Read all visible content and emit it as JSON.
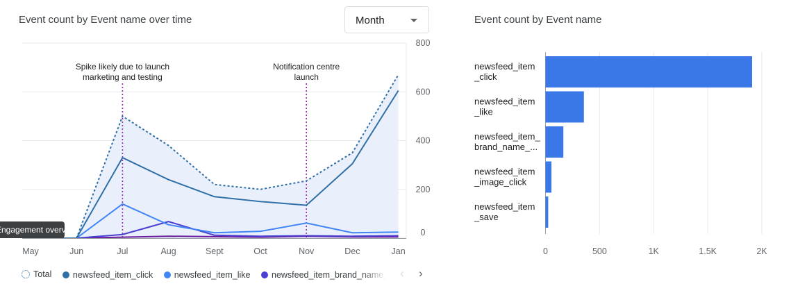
{
  "left_card": {
    "title": "Event count by Event name over time",
    "granularity_select": {
      "value": "Month"
    },
    "tooltip": "Engagement overview"
  },
  "right_card": {
    "title": "Event count by Event name"
  },
  "legend": {
    "items": [
      {
        "label": "Total",
        "color": "#2f6fa6",
        "style": "dotted"
      },
      {
        "label": "newsfeed_item_click",
        "color": "#2f6fa6"
      },
      {
        "label": "newsfeed_item_like",
        "color": "#4285f4"
      },
      {
        "label": "newsfeed_item_brand_name_click",
        "color": "#4b3fd1"
      }
    ],
    "prev_icon": "chevron-left-icon",
    "next_icon": "chevron-right-icon"
  },
  "chart_data": [
    {
      "type": "line",
      "title": "Event count by Event name over time",
      "categories": [
        "May",
        "Jun",
        "Jul",
        "Aug",
        "Sept",
        "Oct",
        "Nov",
        "Dec",
        "Jan"
      ],
      "ylim": [
        0,
        800
      ],
      "yticks": [
        "800",
        "600",
        "400",
        "200",
        "0"
      ],
      "y_axis_position": "right",
      "grid": true,
      "series": [
        {
          "name": "Total",
          "color": "#2f6fa6",
          "style": "dotted",
          "area_fill": "#eaf0fb",
          "values": [
            0,
            0,
            500,
            380,
            220,
            200,
            235,
            350,
            670
          ]
        },
        {
          "name": "newsfeed_item_click",
          "color": "#2f6fa6",
          "values": [
            0,
            0,
            330,
            240,
            170,
            150,
            135,
            305,
            605
          ]
        },
        {
          "name": "newsfeed_item_like",
          "color": "#4285f4",
          "values": [
            0,
            0,
            140,
            55,
            22,
            28,
            62,
            22,
            25
          ]
        },
        {
          "name": "newsfeed_item_brand_name_click",
          "color": "#4b3fd1",
          "values": [
            0,
            0,
            15,
            68,
            12,
            8,
            10,
            8,
            10
          ]
        },
        {
          "color": "#6a1b9a",
          "values": [
            0,
            0,
            4,
            8,
            6,
            4,
            8,
            5,
            5
          ]
        }
      ],
      "annotations": [
        {
          "category": "Jul",
          "lines": [
            "Spike likely due to launch",
            "marketing and testing"
          ],
          "color": "#9c27b0"
        },
        {
          "category": "Nov",
          "lines": [
            "Notification centre",
            "launch"
          ],
          "color": "#9c27b0"
        }
      ]
    },
    {
      "type": "bar",
      "orientation": "horizontal",
      "title": "Event count by Event name",
      "categories": [
        [
          "newsfeed_item",
          "_click"
        ],
        [
          "newsfeed_item",
          "_like"
        ],
        [
          "newsfeed_item_",
          "brand_name_..."
        ],
        [
          "newsfeed_item",
          "_image_click"
        ],
        [
          "newsfeed_item",
          "_save"
        ]
      ],
      "values": [
        1910,
        355,
        165,
        55,
        25
      ],
      "xlim": [
        0,
        2000
      ],
      "xticks": [
        "0",
        "500",
        "1K",
        "1.5K",
        "2K"
      ],
      "color": "#3b78e7",
      "grid": true
    }
  ]
}
